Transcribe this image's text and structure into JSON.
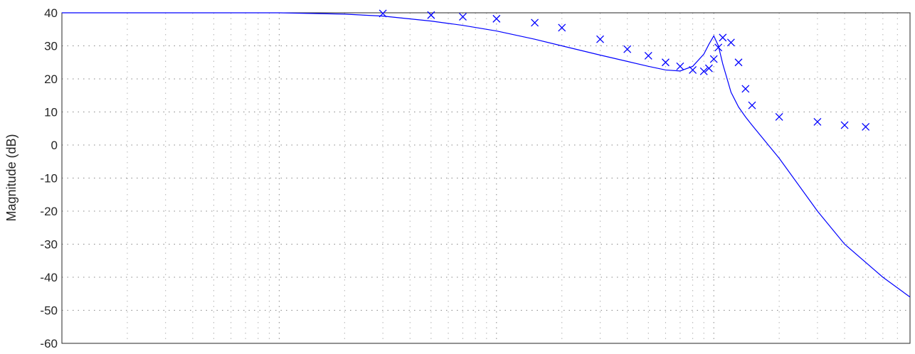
{
  "chart_data": {
    "type": "line",
    "title": "",
    "xlabel": "",
    "ylabel": "Magnitude (dB)",
    "xscale": "log",
    "xlim": [
      0.001,
      8
    ],
    "ylim": [
      -60,
      40
    ],
    "yticks": [
      40,
      30,
      20,
      10,
      0,
      -10,
      -20,
      -30,
      -40,
      -50,
      -60
    ],
    "grid": true,
    "color": "#0000ff",
    "series": [
      {
        "style": "line",
        "x": [
          0.001,
          0.01,
          0.02,
          0.03,
          0.05,
          0.07,
          0.1,
          0.15,
          0.2,
          0.3,
          0.4,
          0.5,
          0.6,
          0.7,
          0.8,
          0.9,
          0.95,
          1.0,
          1.05,
          1.1,
          1.2,
          1.3,
          1.4,
          1.5,
          2,
          3,
          4,
          6,
          8
        ],
        "y": [
          40,
          40,
          39.6,
          39.0,
          37.5,
          36.2,
          34.5,
          32.0,
          30.0,
          27.2,
          25.3,
          23.8,
          22.7,
          22.4,
          23.8,
          27.5,
          30.5,
          33.0,
          30.0,
          24.5,
          16.0,
          11.5,
          8.5,
          6.0,
          -4.0,
          -20.0,
          -30.0,
          -40.0,
          -46.0
        ]
      },
      {
        "style": "markers",
        "marker": "x",
        "x": [
          0.03,
          0.05,
          0.07,
          0.1,
          0.15,
          0.2,
          0.3,
          0.4,
          0.5,
          0.6,
          0.7,
          0.8,
          0.9,
          0.95,
          1.0,
          1.05,
          1.1,
          1.2,
          1.3,
          1.4,
          1.5,
          2,
          3,
          4,
          5
        ],
        "y": [
          39.8,
          39.3,
          38.8,
          38.2,
          37.0,
          35.5,
          32.0,
          29.0,
          27.0,
          25.0,
          23.8,
          22.7,
          22.3,
          23.2,
          26.0,
          29.5,
          32.5,
          31.0,
          25.0,
          17.0,
          12.0,
          8.5,
          7.0,
          6.0,
          5.5
        ]
      }
    ]
  }
}
